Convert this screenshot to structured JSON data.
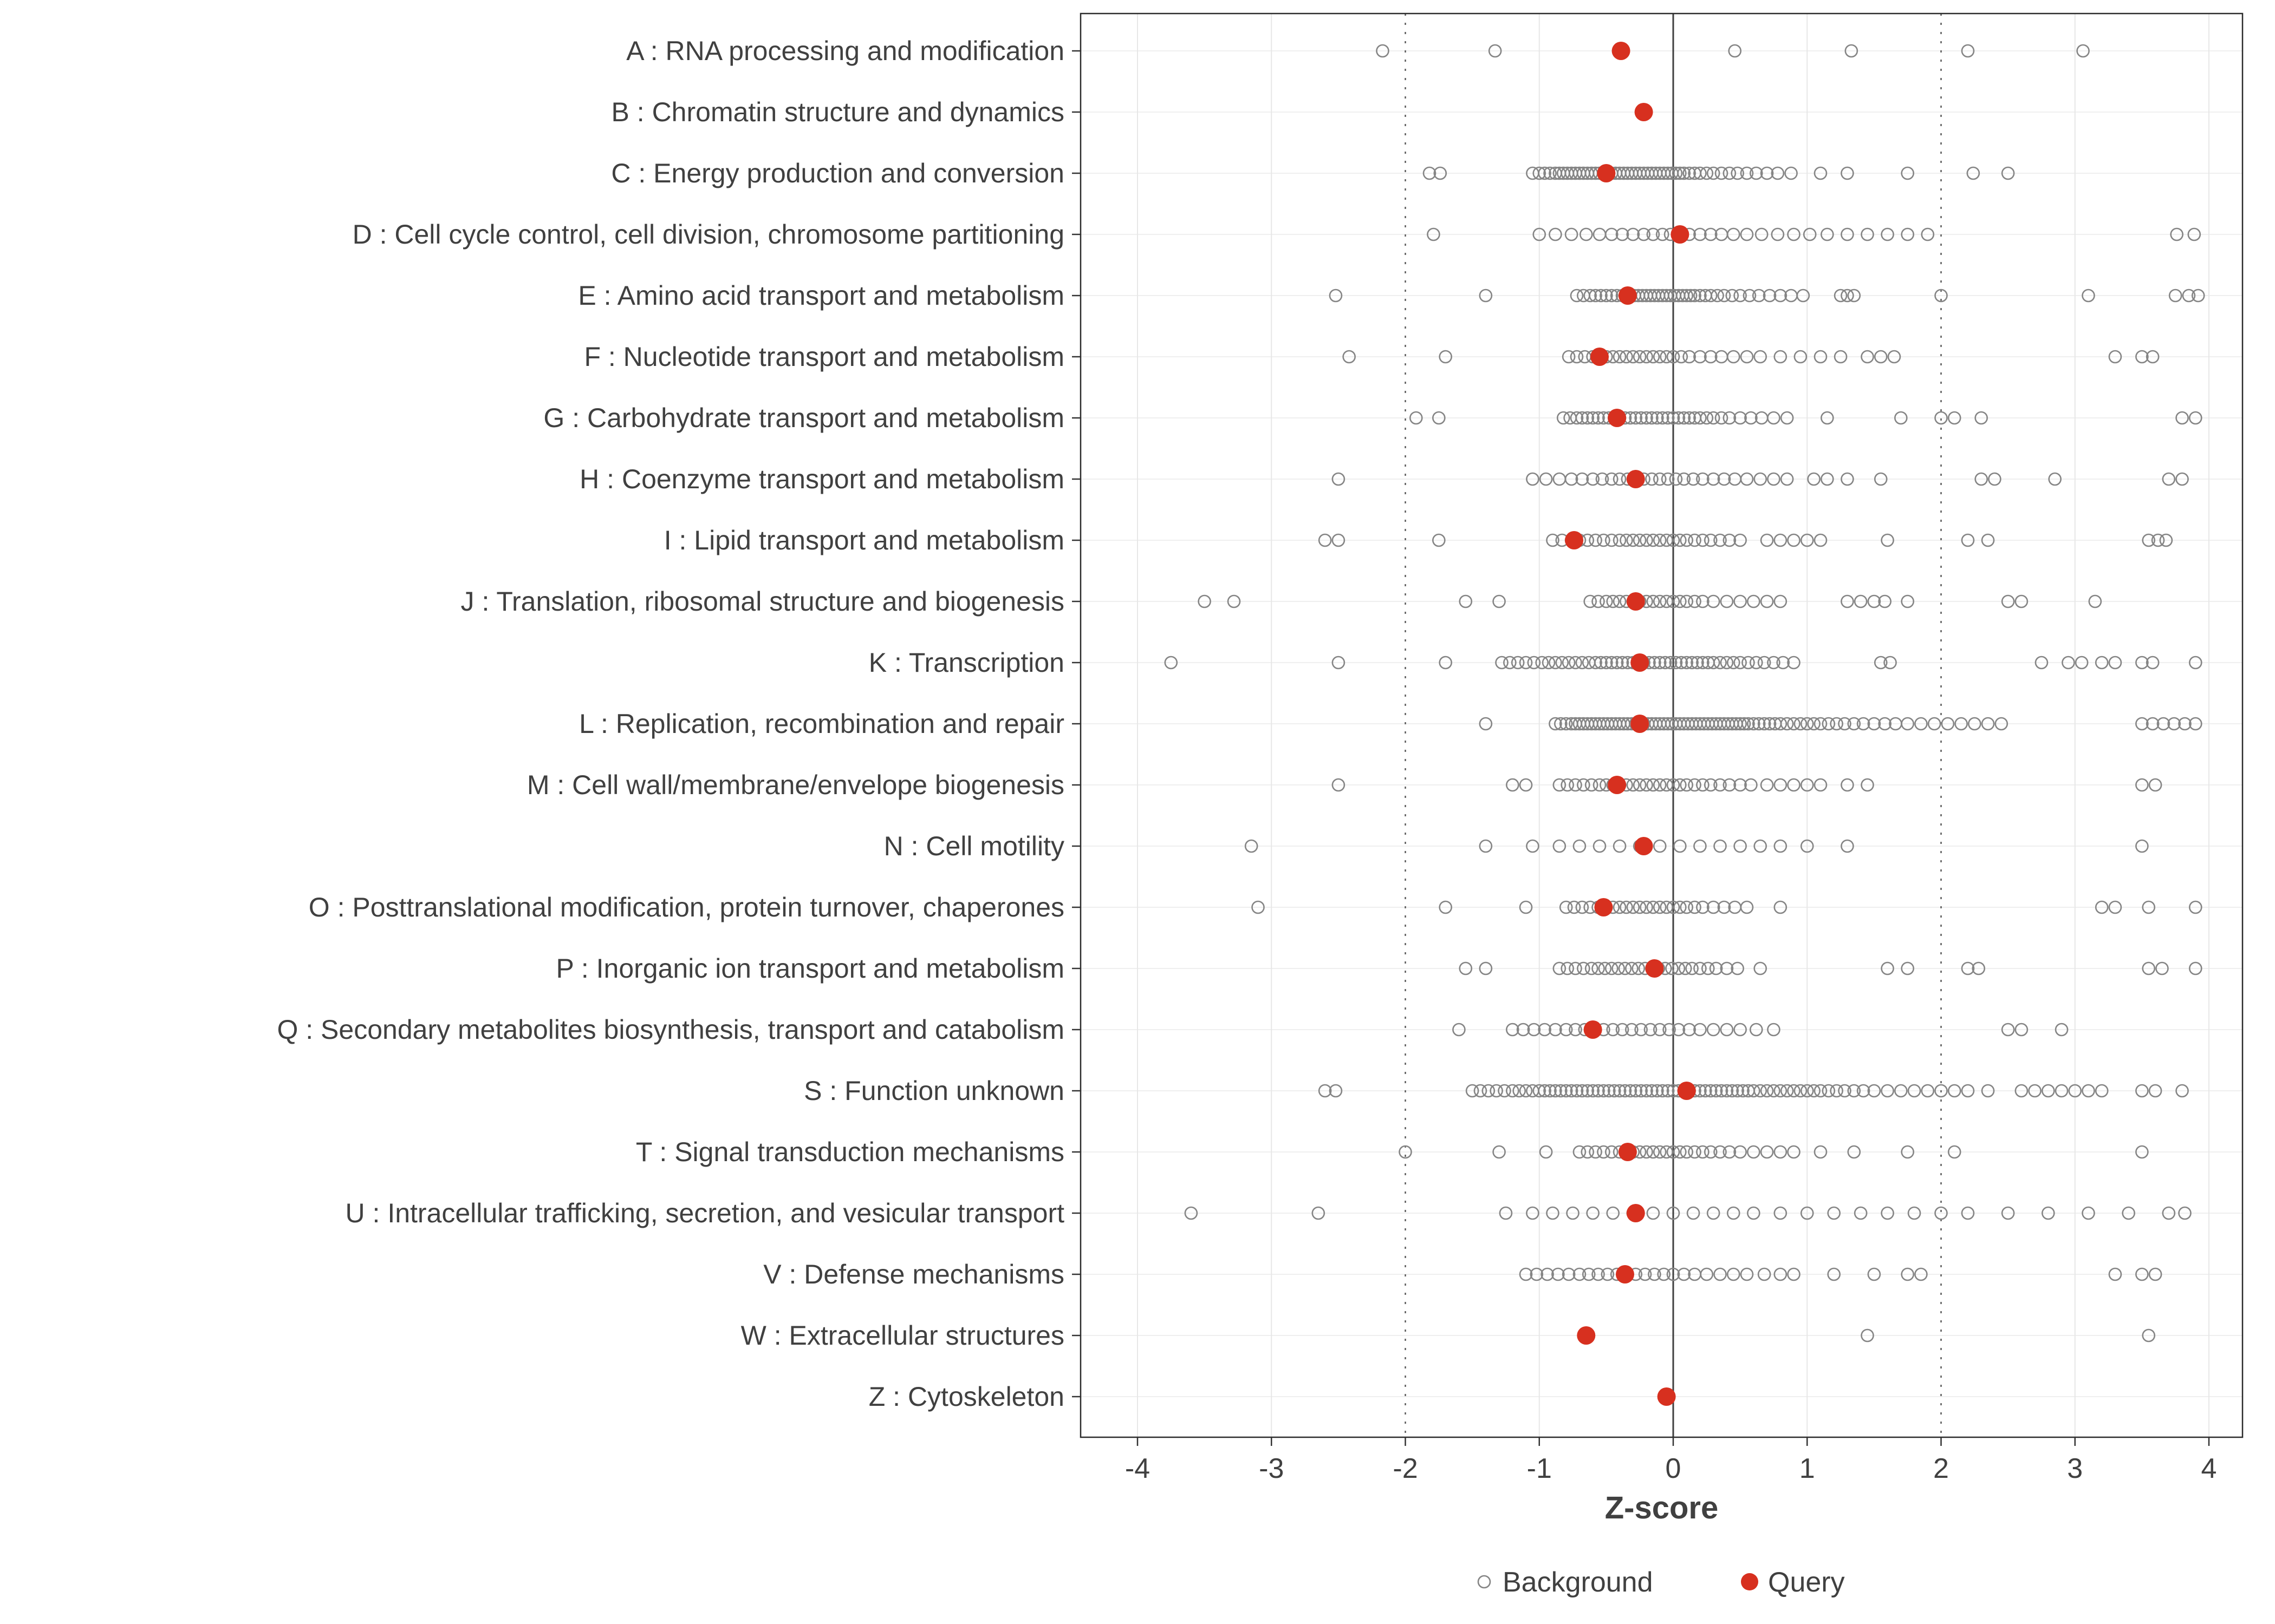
{
  "legend": {
    "background_label": "Background",
    "query_label": "Query"
  },
  "chart_data": {
    "type": "scatter",
    "subtype": "strip-plot",
    "title": "",
    "xlabel": "Z-score",
    "ylabel": "",
    "xlim": [
      -4.45,
      4.3
    ],
    "x_ticks": [
      -4,
      -3,
      -2,
      -1,
      0,
      1,
      2,
      3,
      4
    ],
    "grid": true,
    "legend_position": "bottom",
    "reference_lines": {
      "solid": [
        0
      ],
      "dotted": [
        -2,
        2
      ]
    },
    "colors": {
      "query": "#d7301f",
      "background_stroke": "#858585",
      "grid": "#e7e7e7",
      "row_grid": "#efefef",
      "dotted_line": "#595959",
      "zero_line": "#3f3f3f",
      "panel_border": "#2b2b2b",
      "text": "#404040"
    },
    "categories": [
      {
        "label": "A : RNA processing and modification",
        "query": -0.39,
        "background": [
          -2.17,
          -1.33,
          0.46,
          1.33,
          2.2,
          3.06
        ]
      },
      {
        "label": "B : Chromatin structure and dynamics",
        "query": -0.22,
        "background": []
      },
      {
        "label": "C : Energy production and conversion",
        "query": -0.5,
        "background": [
          -1.82,
          -1.74,
          -1.05,
          -1.0,
          -0.96,
          -0.92,
          -0.88,
          -0.85,
          -0.82,
          -0.79,
          -0.76,
          -0.73,
          -0.7,
          -0.67,
          -0.64,
          -0.61,
          -0.58,
          -0.55,
          -0.52,
          -0.49,
          -0.46,
          -0.43,
          -0.4,
          -0.37,
          -0.34,
          -0.31,
          -0.28,
          -0.25,
          -0.22,
          -0.19,
          -0.16,
          -0.13,
          -0.1,
          -0.07,
          -0.04,
          -0.01,
          0.02,
          0.05,
          0.08,
          0.12,
          0.16,
          0.2,
          0.25,
          0.3,
          0.36,
          0.42,
          0.48,
          0.55,
          0.62,
          0.7,
          0.78,
          0.88,
          1.1,
          1.3,
          1.75,
          2.24,
          2.5
        ]
      },
      {
        "label": "D : Cell cycle control, cell division, chromosome partitioning",
        "query": 0.05,
        "background": [
          -1.79,
          -1.0,
          -0.88,
          -0.76,
          -0.65,
          -0.55,
          -0.46,
          -0.38,
          -0.3,
          -0.22,
          -0.15,
          -0.08,
          -0.02,
          0.05,
          0.12,
          0.2,
          0.28,
          0.36,
          0.45,
          0.55,
          0.66,
          0.78,
          0.9,
          1.02,
          1.15,
          1.3,
          1.45,
          1.6,
          1.75,
          1.9,
          3.76,
          3.89
        ]
      },
      {
        "label": "E : Amino acid transport and metabolism",
        "query": -0.34,
        "background": [
          -2.52,
          -1.4,
          -0.72,
          -0.67,
          -0.62,
          -0.58,
          -0.54,
          -0.5,
          -0.46,
          -0.42,
          -0.38,
          -0.35,
          -0.32,
          -0.29,
          -0.26,
          -0.23,
          -0.2,
          -0.17,
          -0.14,
          -0.11,
          -0.08,
          -0.05,
          -0.02,
          0.01,
          0.04,
          0.07,
          0.1,
          0.13,
          0.16,
          0.2,
          0.24,
          0.28,
          0.33,
          0.38,
          0.44,
          0.5,
          0.57,
          0.64,
          0.72,
          0.8,
          0.88,
          0.97,
          1.25,
          1.3,
          1.35,
          2.0,
          3.1,
          3.75,
          3.85,
          3.92
        ]
      },
      {
        "label": "F : Nucleotide transport and metabolism",
        "query": -0.55,
        "background": [
          -2.42,
          -1.7,
          -0.78,
          -0.72,
          -0.66,
          -0.6,
          -0.55,
          -0.5,
          -0.45,
          -0.4,
          -0.35,
          -0.3,
          -0.25,
          -0.2,
          -0.15,
          -0.1,
          -0.05,
          0.0,
          0.06,
          0.12,
          0.2,
          0.28,
          0.36,
          0.45,
          0.55,
          0.65,
          0.8,
          0.95,
          1.1,
          1.25,
          1.45,
          1.55,
          1.65,
          3.3,
          3.5,
          3.58
        ]
      },
      {
        "label": "G : Carbohydrate transport and metabolism",
        "query": -0.42,
        "background": [
          -1.92,
          -1.75,
          -0.82,
          -0.77,
          -0.72,
          -0.68,
          -0.64,
          -0.6,
          -0.56,
          -0.52,
          -0.48,
          -0.44,
          -0.4,
          -0.36,
          -0.32,
          -0.28,
          -0.24,
          -0.2,
          -0.16,
          -0.12,
          -0.08,
          -0.04,
          0.0,
          0.04,
          0.08,
          0.12,
          0.16,
          0.2,
          0.25,
          0.3,
          0.36,
          0.42,
          0.5,
          0.58,
          0.66,
          0.75,
          0.85,
          1.15,
          1.7,
          2.0,
          2.1,
          2.3,
          3.8,
          3.9
        ]
      },
      {
        "label": "H : Coenzyme transport and metabolism",
        "query": -0.28,
        "background": [
          -2.5,
          -1.05,
          -0.95,
          -0.85,
          -0.76,
          -0.68,
          -0.6,
          -0.53,
          -0.46,
          -0.4,
          -0.34,
          -0.28,
          -0.22,
          -0.16,
          -0.1,
          -0.04,
          0.02,
          0.08,
          0.15,
          0.22,
          0.3,
          0.38,
          0.46,
          0.55,
          0.65,
          0.75,
          0.85,
          1.05,
          1.15,
          1.3,
          1.55,
          2.3,
          2.4,
          2.85,
          3.7,
          3.8
        ]
      },
      {
        "label": "I : Lipid transport and metabolism",
        "query": -0.74,
        "background": [
          -2.6,
          -2.5,
          -1.75,
          -0.9,
          -0.83,
          -0.76,
          -0.7,
          -0.64,
          -0.58,
          -0.52,
          -0.46,
          -0.4,
          -0.35,
          -0.3,
          -0.25,
          -0.2,
          -0.15,
          -0.1,
          -0.05,
          0.0,
          0.05,
          0.1,
          0.16,
          0.22,
          0.28,
          0.35,
          0.42,
          0.5,
          0.7,
          0.8,
          0.9,
          1.0,
          1.1,
          1.6,
          2.2,
          2.35,
          3.55,
          3.62,
          3.68
        ]
      },
      {
        "label": "J : Translation, ribosomal structure and biogenesis",
        "query": -0.28,
        "background": [
          -3.5,
          -3.28,
          -1.55,
          -1.3,
          -0.62,
          -0.56,
          -0.5,
          -0.45,
          -0.4,
          -0.35,
          -0.3,
          -0.25,
          -0.2,
          -0.15,
          -0.1,
          -0.05,
          0.0,
          0.05,
          0.1,
          0.16,
          0.22,
          0.3,
          0.4,
          0.5,
          0.6,
          0.7,
          0.8,
          1.3,
          1.4,
          1.5,
          1.58,
          1.75,
          2.5,
          2.6,
          3.15
        ]
      },
      {
        "label": "K : Transcription",
        "query": -0.25,
        "background": [
          -3.75,
          -2.5,
          -1.7,
          -1.28,
          -1.22,
          -1.16,
          -1.1,
          -1.04,
          -0.98,
          -0.93,
          -0.88,
          -0.83,
          -0.78,
          -0.73,
          -0.68,
          -0.63,
          -0.58,
          -0.54,
          -0.5,
          -0.46,
          -0.42,
          -0.38,
          -0.34,
          -0.3,
          -0.26,
          -0.22,
          -0.18,
          -0.14,
          -0.1,
          -0.06,
          -0.02,
          0.02,
          0.06,
          0.1,
          0.14,
          0.18,
          0.22,
          0.26,
          0.3,
          0.35,
          0.4,
          0.45,
          0.5,
          0.56,
          0.62,
          0.68,
          0.75,
          0.82,
          0.9,
          1.55,
          1.62,
          2.75,
          2.95,
          3.05,
          3.2,
          3.3,
          3.5,
          3.58,
          3.9
        ]
      },
      {
        "label": "L : Replication, recombination and repair",
        "query": -0.25,
        "background": [
          -1.4,
          -0.88,
          -0.84,
          -0.8,
          -0.76,
          -0.73,
          -0.7,
          -0.67,
          -0.64,
          -0.61,
          -0.58,
          -0.55,
          -0.52,
          -0.49,
          -0.46,
          -0.43,
          -0.4,
          -0.37,
          -0.34,
          -0.31,
          -0.28,
          -0.25,
          -0.22,
          -0.19,
          -0.16,
          -0.13,
          -0.1,
          -0.07,
          -0.04,
          -0.01,
          0.02,
          0.05,
          0.08,
          0.11,
          0.14,
          0.17,
          0.2,
          0.23,
          0.26,
          0.29,
          0.32,
          0.35,
          0.38,
          0.41,
          0.44,
          0.47,
          0.5,
          0.53,
          0.56,
          0.6,
          0.64,
          0.68,
          0.72,
          0.76,
          0.8,
          0.85,
          0.9,
          0.95,
          1.0,
          1.05,
          1.1,
          1.16,
          1.22,
          1.28,
          1.35,
          1.42,
          1.5,
          1.58,
          1.66,
          1.75,
          1.85,
          1.95,
          2.05,
          2.15,
          2.25,
          2.35,
          2.45,
          3.5,
          3.58,
          3.66,
          3.74,
          3.82,
          3.9
        ]
      },
      {
        "label": "M : Cell wall/membrane/envelope biogenesis",
        "query": -0.42,
        "background": [
          -2.5,
          -1.2,
          -1.1,
          -0.85,
          -0.79,
          -0.73,
          -0.67,
          -0.61,
          -0.55,
          -0.5,
          -0.45,
          -0.4,
          -0.35,
          -0.3,
          -0.25,
          -0.2,
          -0.15,
          -0.1,
          -0.05,
          0.0,
          0.05,
          0.1,
          0.16,
          0.22,
          0.28,
          0.35,
          0.42,
          0.5,
          0.58,
          0.7,
          0.8,
          0.9,
          1.0,
          1.1,
          1.3,
          1.45,
          3.5,
          3.6
        ]
      },
      {
        "label": "N : Cell motility",
        "query": -0.22,
        "background": [
          -3.15,
          -1.4,
          -1.05,
          -0.85,
          -0.7,
          -0.55,
          -0.4,
          -0.25,
          -0.1,
          0.05,
          0.2,
          0.35,
          0.5,
          0.65,
          0.8,
          1.0,
          1.3,
          3.5
        ]
      },
      {
        "label": "O : Posttranslational modification, protein turnover, chaperones",
        "query": -0.52,
        "background": [
          -3.1,
          -1.7,
          -1.1,
          -0.8,
          -0.74,
          -0.68,
          -0.62,
          -0.56,
          -0.5,
          -0.45,
          -0.4,
          -0.35,
          -0.3,
          -0.25,
          -0.2,
          -0.15,
          -0.1,
          -0.05,
          0.0,
          0.05,
          0.1,
          0.16,
          0.22,
          0.3,
          0.38,
          0.46,
          0.55,
          0.8,
          3.2,
          3.3,
          3.55,
          3.9
        ]
      },
      {
        "label": "P : Inorganic ion transport and metabolism",
        "query": -0.14,
        "background": [
          -1.55,
          -1.4,
          -0.85,
          -0.79,
          -0.73,
          -0.67,
          -0.61,
          -0.56,
          -0.51,
          -0.46,
          -0.41,
          -0.36,
          -0.31,
          -0.26,
          -0.21,
          -0.16,
          -0.11,
          -0.06,
          -0.01,
          0.04,
          0.09,
          0.14,
          0.2,
          0.26,
          0.32,
          0.4,
          0.48,
          0.65,
          1.6,
          1.75,
          2.2,
          2.28,
          3.55,
          3.65,
          3.9
        ]
      },
      {
        "label": "Q : Secondary metabolites biosynthesis, transport and catabolism",
        "query": -0.6,
        "background": [
          -1.6,
          -1.2,
          -1.12,
          -1.04,
          -0.96,
          -0.88,
          -0.8,
          -0.73,
          -0.66,
          -0.59,
          -0.52,
          -0.45,
          -0.38,
          -0.31,
          -0.24,
          -0.17,
          -0.1,
          -0.03,
          0.04,
          0.12,
          0.2,
          0.3,
          0.4,
          0.5,
          0.62,
          0.75,
          2.5,
          2.6,
          2.9
        ]
      },
      {
        "label": "S : Function unknown",
        "query": 0.1,
        "background": [
          -2.6,
          -2.52,
          -1.5,
          -1.44,
          -1.38,
          -1.32,
          -1.26,
          -1.2,
          -1.15,
          -1.1,
          -1.05,
          -1.0,
          -0.96,
          -0.92,
          -0.88,
          -0.84,
          -0.8,
          -0.76,
          -0.72,
          -0.68,
          -0.64,
          -0.6,
          -0.56,
          -0.52,
          -0.48,
          -0.44,
          -0.4,
          -0.36,
          -0.32,
          -0.28,
          -0.24,
          -0.2,
          -0.16,
          -0.12,
          -0.08,
          -0.04,
          0.0,
          0.04,
          0.08,
          0.12,
          0.16,
          0.2,
          0.24,
          0.28,
          0.32,
          0.36,
          0.4,
          0.44,
          0.48,
          0.52,
          0.56,
          0.6,
          0.65,
          0.7,
          0.75,
          0.8,
          0.85,
          0.9,
          0.95,
          1.0,
          1.05,
          1.1,
          1.16,
          1.22,
          1.28,
          1.35,
          1.42,
          1.5,
          1.6,
          1.7,
          1.8,
          1.9,
          2.0,
          2.1,
          2.2,
          2.35,
          2.6,
          2.7,
          2.8,
          2.9,
          3.0,
          3.1,
          3.2,
          3.5,
          3.6,
          3.8
        ]
      },
      {
        "label": "T : Signal transduction mechanisms",
        "query": -0.34,
        "background": [
          -2.0,
          -1.3,
          -0.95,
          -0.7,
          -0.64,
          -0.58,
          -0.52,
          -0.46,
          -0.4,
          -0.35,
          -0.3,
          -0.25,
          -0.2,
          -0.15,
          -0.1,
          -0.05,
          0.0,
          0.05,
          0.1,
          0.16,
          0.22,
          0.28,
          0.35,
          0.42,
          0.5,
          0.6,
          0.7,
          0.8,
          0.9,
          1.1,
          1.35,
          1.75,
          2.1,
          3.5
        ]
      },
      {
        "label": "U : Intracellular trafficking, secretion, and vesicular transport",
        "query": -0.28,
        "background": [
          -3.6,
          -2.65,
          -1.25,
          -1.05,
          -0.9,
          -0.75,
          -0.6,
          -0.45,
          -0.3,
          -0.15,
          0.0,
          0.15,
          0.3,
          0.45,
          0.6,
          0.8,
          1.0,
          1.2,
          1.4,
          1.6,
          1.8,
          2.0,
          2.2,
          2.5,
          2.8,
          3.1,
          3.4,
          3.7,
          3.82
        ]
      },
      {
        "label": "V : Defense mechanisms",
        "query": -0.36,
        "background": [
          -1.1,
          -1.02,
          -0.94,
          -0.86,
          -0.78,
          -0.7,
          -0.63,
          -0.56,
          -0.49,
          -0.42,
          -0.35,
          -0.28,
          -0.21,
          -0.14,
          -0.07,
          0.0,
          0.08,
          0.16,
          0.25,
          0.35,
          0.45,
          0.55,
          0.68,
          0.8,
          0.9,
          1.2,
          1.5,
          1.75,
          1.85,
          3.3,
          3.5,
          3.6
        ]
      },
      {
        "label": "W : Extracellular structures",
        "query": -0.65,
        "background": [
          1.45,
          3.55
        ]
      },
      {
        "label": "Z : Cytoskeleton",
        "query": -0.05,
        "background": []
      }
    ]
  }
}
